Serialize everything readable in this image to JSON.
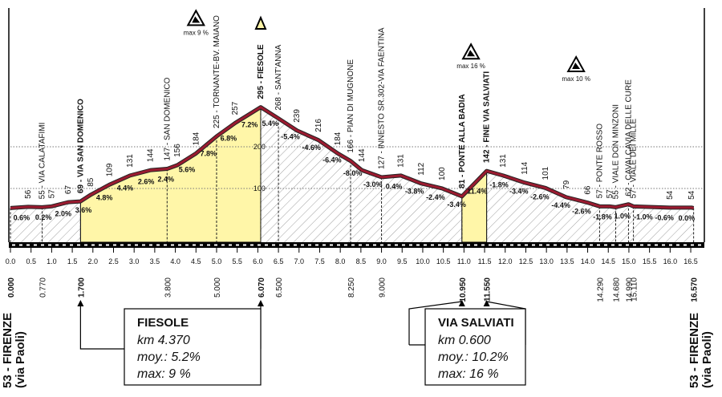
{
  "chart_data": {
    "type": "profile",
    "color": "#9b1b30",
    "fill_color": "#fff6a8",
    "xlim": [
      0,
      16.83
    ],
    "ylim": [
      -29,
      533
    ],
    "yticks": [
      100,
      200
    ],
    "grid": true,
    "xticks": [
      {
        "value": 0,
        "label": "0.0"
      },
      0.5,
      {
        "value": 1,
        "label": "1.0"
      },
      1.5,
      {
        "value": 2,
        "label": "2.0"
      },
      2.5,
      {
        "value": 3,
        "label": "3.0"
      },
      3.5,
      {
        "value": 4,
        "label": "4.0"
      },
      4.5,
      {
        "value": 5,
        "label": "5.0"
      },
      5.5,
      {
        "value": 6,
        "label": "6.0"
      },
      6.5,
      {
        "value": 7,
        "label": "7.0"
      },
      7.5,
      {
        "value": 8,
        "label": "8.0"
      },
      8.5,
      {
        "value": 9,
        "label": "9.0"
      },
      9.5,
      {
        "value": 10,
        "label": "10.0"
      },
      10.5,
      {
        "value": 11,
        "label": "11.0"
      },
      11.5,
      {
        "value": 12,
        "label": "12.0"
      },
      12.5,
      {
        "value": 13,
        "label": "13.0"
      },
      13.5,
      {
        "value": 14,
        "label": "14.0"
      },
      14.5,
      {
        "value": 15,
        "label": "15.0"
      },
      15.5,
      {
        "value": 16,
        "label": "16.0"
      },
      16.5
    ],
    "x": [
      0,
      0.43,
      0.77,
      1.0,
      1.4,
      1.7,
      1.95,
      2.4,
      2.9,
      3.4,
      3.8,
      4.05,
      4.5,
      5.0,
      5.45,
      6.07,
      6.5,
      6.95,
      7.47,
      7.94,
      8.25,
      8.52,
      9.0,
      9.47,
      9.96,
      10.47,
      10.95,
      11.55,
      11.95,
      12.47,
      12.98,
      13.48,
      14.0,
      14.29,
      14.53,
      14.68,
      14.99,
      15.11,
      15.99,
      16.52,
      16.57
    ],
    "values": [
      53,
      56,
      55,
      57,
      67,
      69,
      85,
      109,
      131,
      144,
      147,
      156,
      184,
      225,
      257,
      295,
      268,
      239,
      216,
      184,
      166,
      144,
      127,
      131,
      112,
      100,
      81,
      142,
      131,
      114,
      101,
      79,
      66,
      57,
      57,
      55,
      62,
      57,
      54,
      54,
      53
    ],
    "point_labels": [
      null,
      "56",
      "55 - VIA CALATAFIMI",
      "57",
      "67",
      "69 - VIA SAN DOMENICO",
      "85",
      "109",
      "131",
      "144",
      "147 - SAN DOMENICO",
      "156",
      "184",
      "225 - TORNANTE-BV. MAIANO",
      "257",
      "295 - FIESOLE",
      "268 - SANT'ANNA",
      "239",
      "216",
      "184",
      "166 - PIAN DI MUGNONE",
      "144",
      "127 - INNESTO SR.302-VIA FAENTINA",
      "131",
      "112",
      "100",
      "81 - PONTE ALLA BADIA",
      "142 - FINE VIA SALVIATI",
      "131",
      "114",
      "101",
      "79",
      "66",
      "57 - PONTE ROSSO",
      "57",
      "55 - VIALE DON MINZONI",
      "62 - CAVALCAVIA DELLE CURE",
      "57 - VIALE DEI MILLE",
      "54",
      "54",
      null
    ],
    "start_label": {
      "name": "53 - FIRENZE",
      "place": "(via Paoli)"
    },
    "end_label": {
      "name": "53 - FIRENZE",
      "place": "(via Paoli)"
    },
    "km_marks": [
      {
        "value": 0,
        "label": "0.000"
      },
      {
        "value": 0.77,
        "label": "0.770"
      },
      {
        "value": 1.7,
        "label": "1.700"
      },
      {
        "value": 3.8,
        "label": "3.800"
      },
      {
        "value": 5,
        "label": "5.000"
      },
      {
        "value": 6.07,
        "label": "6.070"
      },
      {
        "value": 6.5,
        "label": "6.500"
      },
      {
        "value": 8.25,
        "label": "8.250"
      },
      {
        "value": 9,
        "label": "9.000"
      },
      {
        "value": 10.95,
        "label": "10.950"
      },
      {
        "value": 11.55,
        "label": "11.550"
      },
      {
        "value": 14.29,
        "label": "14.290"
      },
      {
        "value": 14.68,
        "label": "14.680"
      },
      {
        "value": 14.99,
        "label": "14.990"
      },
      {
        "value": 15.11,
        "label": "15.110"
      },
      {
        "value": 16.57,
        "label": "16.570"
      }
    ],
    "gradients": {
      "x": [
        0.27,
        0.8,
        1.28,
        1.77,
        2.28,
        2.78,
        3.29,
        3.77,
        4.28,
        4.8,
        5.29,
        5.8,
        6.3,
        6.79,
        7.3,
        7.8,
        8.3,
        8.79,
        9.3,
        9.8,
        10.31,
        10.82,
        11.32,
        11.85,
        12.33,
        12.84,
        13.35,
        13.85,
        14.36,
        14.84,
        15.35,
        15.86,
        16.4
      ],
      "values": [
        0.6,
        0.2,
        2.0,
        3.6,
        4.8,
        4.4,
        2.6,
        2.4,
        5.6,
        7.8,
        6.8,
        7.2,
        5.4,
        -5.4,
        -4.6,
        -6.4,
        -8.0,
        -3.0,
        0.4,
        -3.8,
        -2.4,
        -3.4,
        11.4,
        -1.8,
        -3.4,
        -2.6,
        -4.4,
        -2.6,
        -1.8,
        1.0,
        -1.0,
        -0.6,
        0.0
      ],
      "value_labels": [
        "0.6%",
        "0.2%",
        "2.0%",
        "3.6%",
        "4.8%",
        "4.4%",
        "2.6%",
        "2.4%",
        "5.6%",
        "7.8%",
        "6.8%",
        "7.2%",
        "5.4%",
        "-5.4%",
        "-4.6%",
        "-6.4%",
        "-8.0%",
        "-3.0%",
        "0.4%",
        "-3.8%",
        "-2.4%",
        "-3.4%",
        "11.4%",
        "-1.8%",
        "-3.4%",
        "-2.6%",
        "-4.4%",
        "-2.6%",
        "-1.8%",
        "1.0%",
        "-1.0%",
        "-0.6%",
        "0.0%"
      ]
    },
    "max_markers": {
      "x": [
        4.5,
        11.17,
        13.72
      ],
      "labels": [
        "max 9 %",
        "max 16 %",
        "max 10 %"
      ]
    },
    "climbs": [
      {
        "name": "FIESOLE",
        "start": 1.7,
        "end": 6.07,
        "length": "km 4.370",
        "average": "moy.: 5.2%",
        "max": "max: 9 %"
      },
      {
        "name": "VIA SALVIATI",
        "start": 10.95,
        "end": 11.55,
        "length": "km 0.600",
        "average": "moy.: 10.2%",
        "max": "max: 16 %"
      }
    ]
  }
}
